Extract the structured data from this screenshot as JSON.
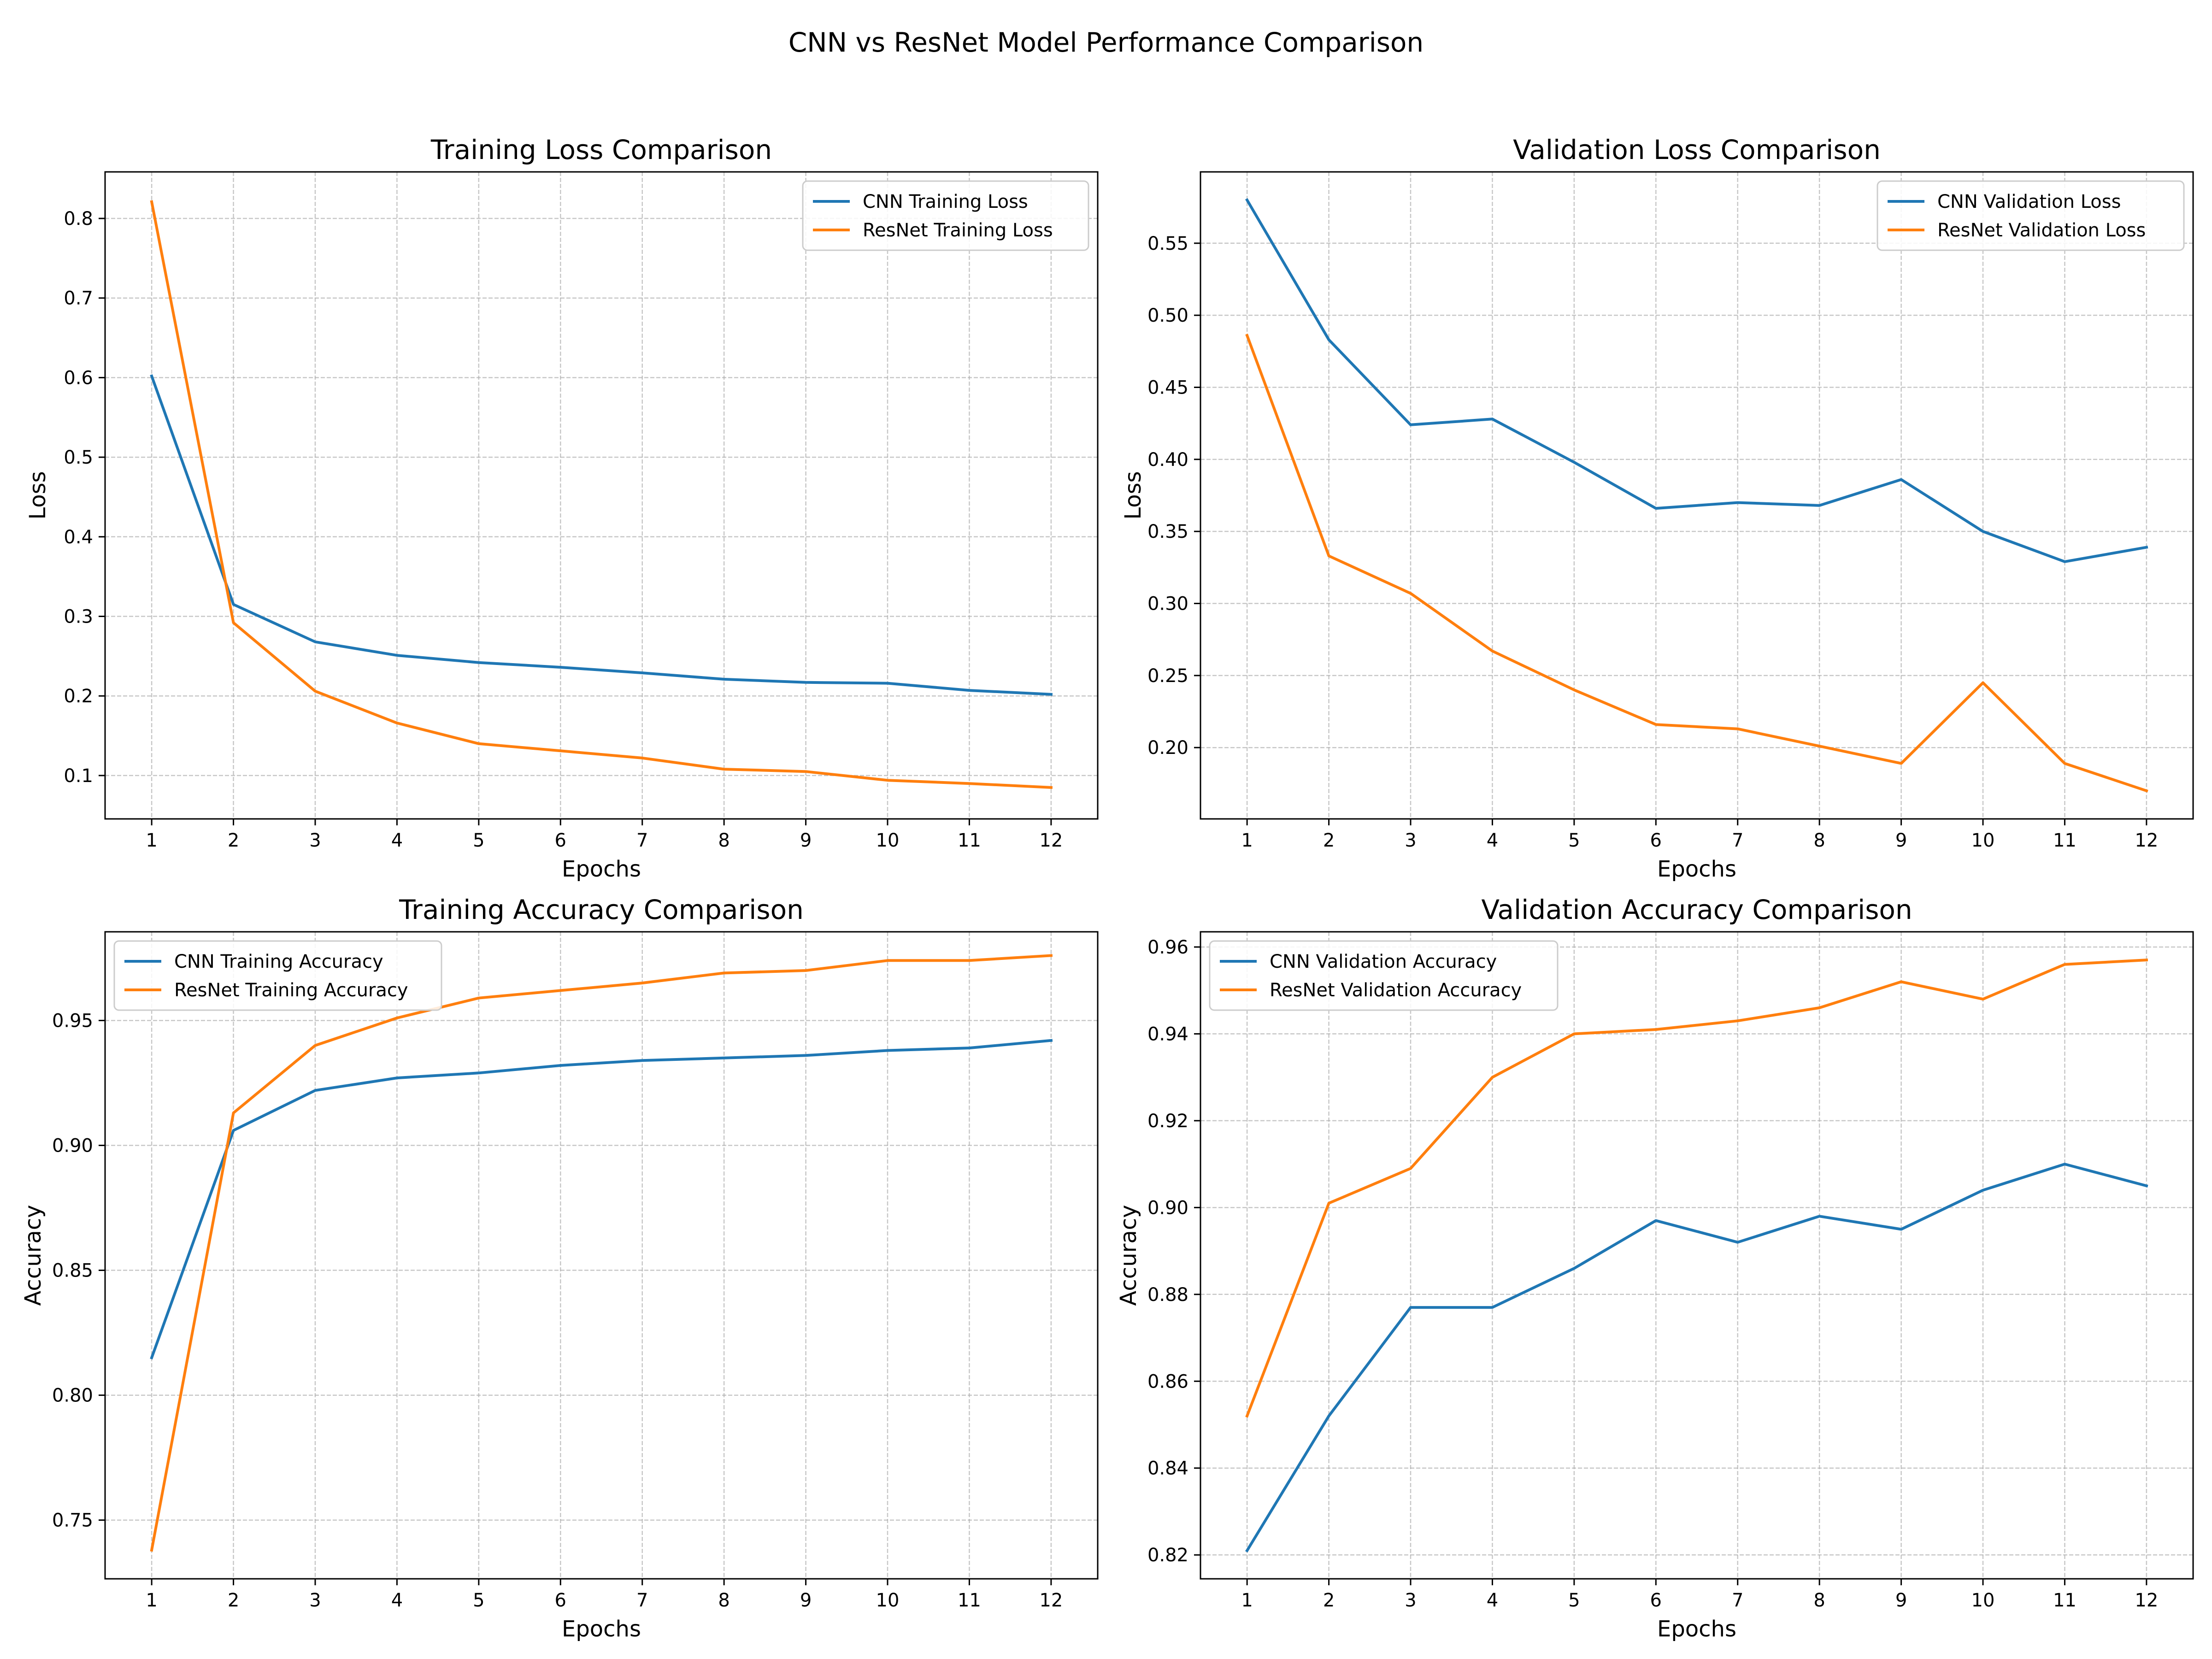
{
  "figure": {
    "title": "CNN vs ResNet Model Performance Comparison"
  },
  "colors": {
    "cnn": "#1f77b4",
    "resnet": "#ff7f0e",
    "grid": "#b0b0b0"
  },
  "chart_data": [
    {
      "type": "line",
      "title": "Training Loss Comparison",
      "xlabel": "Epochs",
      "ylabel": "Loss",
      "x": [
        1,
        2,
        3,
        4,
        5,
        6,
        7,
        8,
        9,
        10,
        11,
        12
      ],
      "xticks": [
        "1",
        "2",
        "3",
        "4",
        "5",
        "6",
        "7",
        "8",
        "9",
        "10",
        "11",
        "12"
      ],
      "xlim": [
        0.43,
        12.57
      ],
      "ylim": [
        0.0455,
        0.8585
      ],
      "yticks": [
        0.1,
        0.2,
        0.3,
        0.4,
        0.5,
        0.6,
        0.7,
        0.8
      ],
      "ytick_labels": [
        "0.1",
        "0.2",
        "0.3",
        "0.4",
        "0.5",
        "0.6",
        "0.7",
        "0.8"
      ],
      "grid": true,
      "legend": "upper right",
      "series": [
        {
          "name": "CNN Training Loss",
          "color": "#1f77b4",
          "values": [
            0.602,
            0.315,
            0.268,
            0.251,
            0.242,
            0.236,
            0.229,
            0.221,
            0.217,
            0.216,
            0.207,
            0.202
          ]
        },
        {
          "name": "ResNet Training Loss",
          "color": "#ff7f0e",
          "values": [
            0.821,
            0.292,
            0.206,
            0.166,
            0.14,
            0.131,
            0.122,
            0.108,
            0.105,
            0.094,
            0.09,
            0.085
          ]
        }
      ]
    },
    {
      "type": "line",
      "title": "Validation Loss Comparison",
      "xlabel": "Epochs",
      "ylabel": "Loss",
      "x": [
        1,
        2,
        3,
        4,
        5,
        6,
        7,
        8,
        9,
        10,
        11,
        12
      ],
      "xticks": [
        "1",
        "2",
        "3",
        "4",
        "5",
        "6",
        "7",
        "8",
        "9",
        "10",
        "11",
        "12"
      ],
      "xlim": [
        0.43,
        12.57
      ],
      "ylim": [
        0.1505,
        0.5995
      ],
      "yticks": [
        0.2,
        0.25,
        0.3,
        0.35,
        0.4,
        0.45,
        0.5,
        0.55
      ],
      "ytick_labels": [
        "0.20",
        "0.25",
        "0.30",
        "0.35",
        "0.40",
        "0.45",
        "0.50",
        "0.55"
      ],
      "grid": true,
      "legend": "upper right",
      "series": [
        {
          "name": "CNN Validation Loss",
          "color": "#1f77b4",
          "values": [
            0.58,
            0.483,
            0.424,
            0.428,
            0.398,
            0.366,
            0.37,
            0.368,
            0.386,
            0.35,
            0.329,
            0.339
          ]
        },
        {
          "name": "ResNet Validation Loss",
          "color": "#ff7f0e",
          "values": [
            0.486,
            0.333,
            0.307,
            0.267,
            0.24,
            0.216,
            0.213,
            0.201,
            0.189,
            0.245,
            0.189,
            0.17
          ]
        }
      ]
    },
    {
      "type": "line",
      "title": "Training Accuracy Comparison",
      "xlabel": "Epochs",
      "ylabel": "Accuracy",
      "x": [
        1,
        2,
        3,
        4,
        5,
        6,
        7,
        8,
        9,
        10,
        11,
        12
      ],
      "xticks": [
        "1",
        "2",
        "3",
        "4",
        "5",
        "6",
        "7",
        "8",
        "9",
        "10",
        "11",
        "12"
      ],
      "xlim": [
        0.43,
        12.57
      ],
      "ylim": [
        0.7265,
        0.9855
      ],
      "yticks": [
        0.75,
        0.8,
        0.85,
        0.9,
        0.95
      ],
      "ytick_labels": [
        "0.75",
        "0.80",
        "0.85",
        "0.90",
        "0.95"
      ],
      "grid": true,
      "legend": "upper left",
      "series": [
        {
          "name": "CNN Training Accuracy",
          "color": "#1f77b4",
          "values": [
            0.815,
            0.906,
            0.922,
            0.927,
            0.929,
            0.932,
            0.934,
            0.935,
            0.936,
            0.938,
            0.939,
            0.942
          ]
        },
        {
          "name": "ResNet Training Accuracy",
          "color": "#ff7f0e",
          "values": [
            0.738,
            0.913,
            0.94,
            0.951,
            0.959,
            0.962,
            0.965,
            0.969,
            0.97,
            0.974,
            0.974,
            0.976
          ]
        }
      ]
    },
    {
      "type": "line",
      "title": "Validation Accuracy Comparison",
      "xlabel": "Epochs",
      "ylabel": "Accuracy",
      "x": [
        1,
        2,
        3,
        4,
        5,
        6,
        7,
        8,
        9,
        10,
        11,
        12
      ],
      "xticks": [
        "1",
        "2",
        "3",
        "4",
        "5",
        "6",
        "7",
        "8",
        "9",
        "10",
        "11",
        "12"
      ],
      "xlim": [
        0.43,
        12.57
      ],
      "ylim": [
        0.8145,
        0.9635
      ],
      "yticks": [
        0.82,
        0.84,
        0.86,
        0.88,
        0.9,
        0.92,
        0.94,
        0.96
      ],
      "ytick_labels": [
        "0.82",
        "0.84",
        "0.86",
        "0.88",
        "0.90",
        "0.92",
        "0.94",
        "0.96"
      ],
      "grid": true,
      "legend": "upper left",
      "series": [
        {
          "name": "CNN Validation Accuracy",
          "color": "#1f77b4",
          "values": [
            0.821,
            0.852,
            0.877,
            0.877,
            0.886,
            0.897,
            0.892,
            0.898,
            0.895,
            0.904,
            0.91,
            0.905
          ]
        },
        {
          "name": "ResNet Validation Accuracy",
          "color": "#ff7f0e",
          "values": [
            0.852,
            0.901,
            0.909,
            0.93,
            0.94,
            0.941,
            0.943,
            0.946,
            0.952,
            0.948,
            0.956,
            0.957
          ]
        }
      ]
    }
  ]
}
